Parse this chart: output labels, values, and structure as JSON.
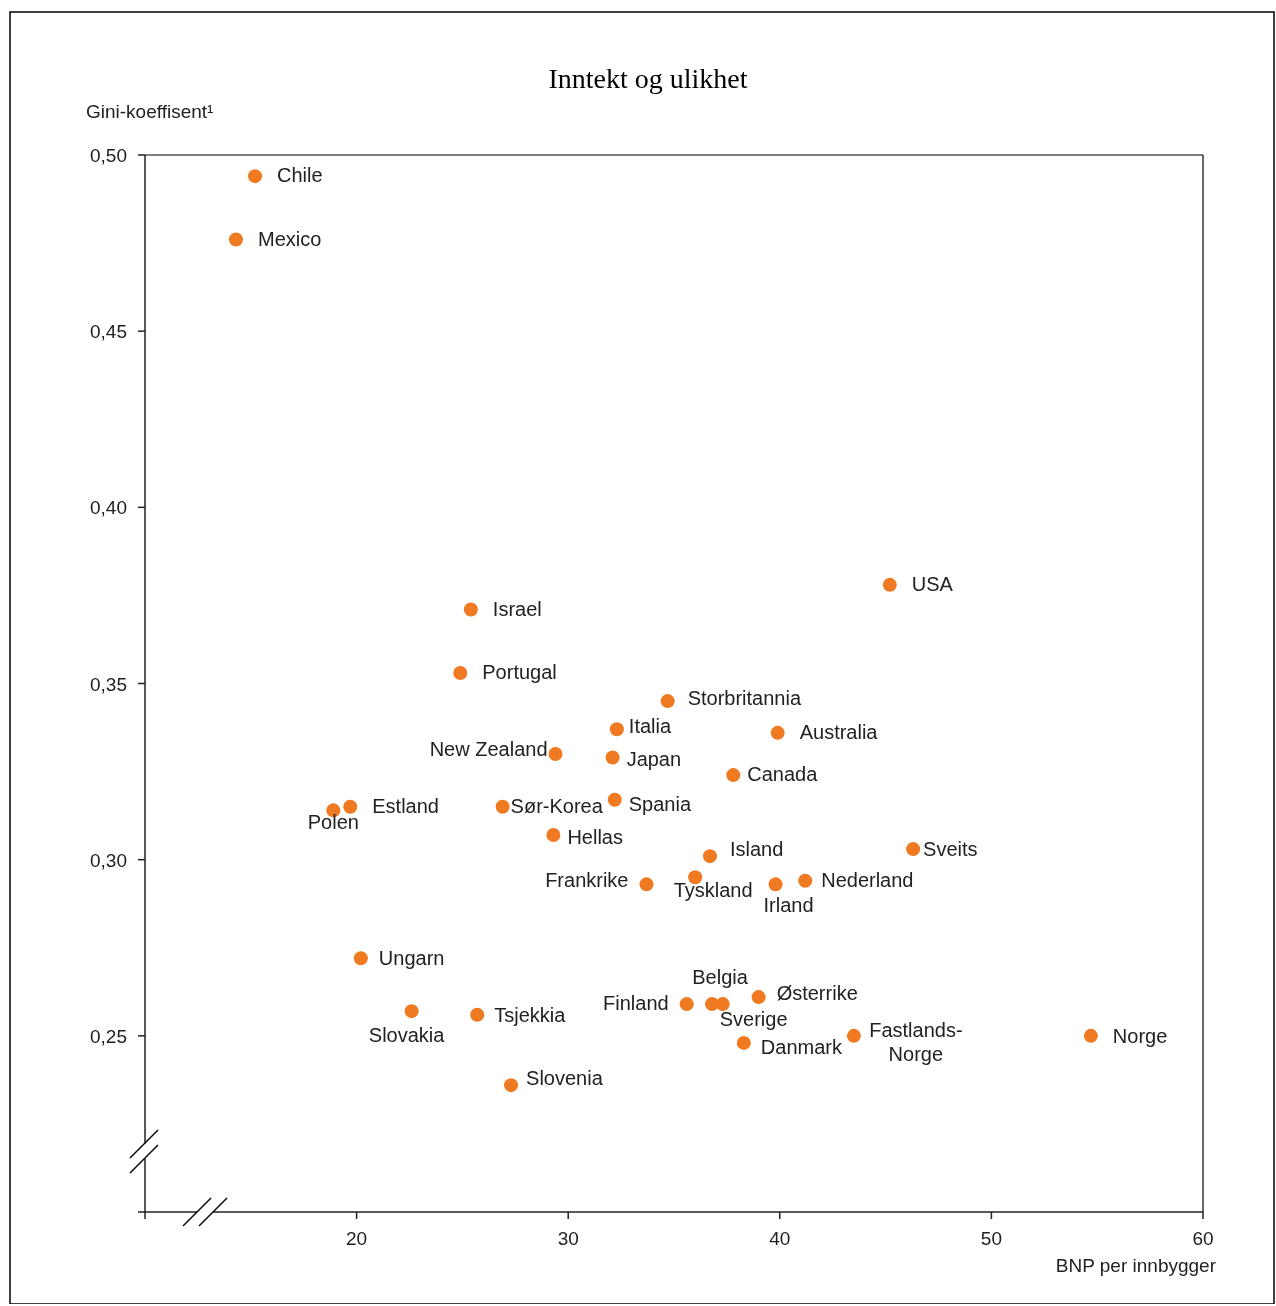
{
  "chart_data": {
    "type": "scatter",
    "title": "Inntekt og ulikhet",
    "xlabel": "BNP per innbygger",
    "ylabel": "Gini-koeffisent¹",
    "xlim": [
      10,
      60
    ],
    "ylim": [
      0.2,
      0.5
    ],
    "xticks": [
      {
        "value": 10,
        "label": null
      },
      20,
      30,
      40,
      50,
      60
    ],
    "yticks": [
      {
        "value": 0.2,
        "label": null
      },
      {
        "value": 0.25,
        "label": "0,25"
      },
      {
        "value": 0.3,
        "label": "0,30"
      },
      {
        "value": 0.35,
        "label": "0,35"
      },
      {
        "value": 0.4,
        "label": "0,40"
      },
      {
        "value": 0.45,
        "label": "0,45"
      },
      {
        "value": 0.5,
        "label": "0,50"
      }
    ],
    "grid": false,
    "marker": "circle",
    "series": [
      {
        "color": "#f07a22",
        "x": [
          15.2,
          14.3,
          45.2,
          25.4,
          24.9,
          34.7,
          32.3,
          39.9,
          29.4,
          32.1,
          37.8,
          18.9,
          19.7,
          26.9,
          32.2,
          29.3,
          36.7,
          46.3,
          36.0,
          33.7,
          39.8,
          41.2,
          20.2,
          35.6,
          36.8,
          37.3,
          39.0,
          22.6,
          25.7,
          38.3,
          43.5,
          54.7,
          27.3
        ],
        "values": [
          0.494,
          0.476,
          0.378,
          0.371,
          0.353,
          0.345,
          0.337,
          0.336,
          0.33,
          0.329,
          0.324,
          0.314,
          0.315,
          0.315,
          0.317,
          0.307,
          0.301,
          0.303,
          0.295,
          0.293,
          0.293,
          0.294,
          0.272,
          0.259,
          0.259,
          0.259,
          0.261,
          0.257,
          0.256,
          0.248,
          0.25,
          0.25,
          0.236
        ]
      }
    ],
    "annotations": [
      {
        "text": "Chile",
        "x": 15.2,
        "y": 0.494
      },
      {
        "text": "Mexico",
        "x": 14.3,
        "y": 0.476
      },
      {
        "text": "USA",
        "x": 45.2,
        "y": 0.378
      },
      {
        "text": "Israel",
        "x": 25.4,
        "y": 0.371
      },
      {
        "text": "Portugal",
        "x": 24.9,
        "y": 0.353
      },
      {
        "text": "Storbritannia",
        "x": 34.7,
        "y": 0.345
      },
      {
        "text": "Italia",
        "x": 32.3,
        "y": 0.337
      },
      {
        "text": "Australia",
        "x": 39.9,
        "y": 0.336
      },
      {
        "text": "New Zealand",
        "x": 29.4,
        "y": 0.33
      },
      {
        "text": "Japan",
        "x": 32.1,
        "y": 0.329
      },
      {
        "text": "Canada",
        "x": 37.8,
        "y": 0.324
      },
      {
        "text": "Polen",
        "x": 18.9,
        "y": 0.314
      },
      {
        "text": "Estland",
        "x": 19.7,
        "y": 0.315
      },
      {
        "text": "Sør-Korea",
        "x": 26.9,
        "y": 0.315
      },
      {
        "text": "Spania",
        "x": 32.2,
        "y": 0.317
      },
      {
        "text": "Hellas",
        "x": 29.3,
        "y": 0.307
      },
      {
        "text": "Island",
        "x": 36.7,
        "y": 0.301
      },
      {
        "text": "Sveits",
        "x": 46.3,
        "y": 0.303
      },
      {
        "text": "Tyskland",
        "x": 36.0,
        "y": 0.295
      },
      {
        "text": "Frankrike",
        "x": 33.7,
        "y": 0.293
      },
      {
        "text": "Irland",
        "x": 39.8,
        "y": 0.293
      },
      {
        "text": "Nederland",
        "x": 41.2,
        "y": 0.294
      },
      {
        "text": "Ungarn",
        "x": 20.2,
        "y": 0.272
      },
      {
        "text": "Finland",
        "x": 35.6,
        "y": 0.259
      },
      {
        "text": "Belgia",
        "x": 36.8,
        "y": 0.259
      },
      {
        "text": "Sverige",
        "x": 37.3,
        "y": 0.259
      },
      {
        "text": "Østerrike",
        "x": 39.0,
        "y": 0.261
      },
      {
        "text": "Slovakia",
        "x": 22.6,
        "y": 0.257
      },
      {
        "text": "Tsjekkia",
        "x": 25.7,
        "y": 0.256
      },
      {
        "text": "Danmark",
        "x": 38.3,
        "y": 0.248
      },
      {
        "text": "Fastlands-Norge",
        "x": 43.5,
        "y": 0.25
      },
      {
        "text": "Norge",
        "x": 54.7,
        "y": 0.25
      },
      {
        "text": "Slovenia",
        "x": 27.3,
        "y": 0.236
      }
    ]
  }
}
